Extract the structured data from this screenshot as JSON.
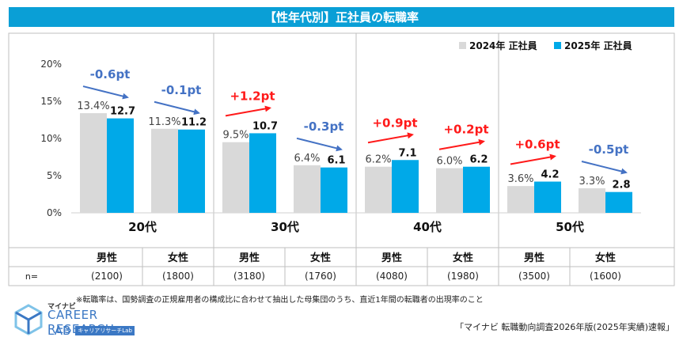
{
  "title": "【性年代別】正社員の転職率",
  "legend": [
    {
      "label": "2024年 正社員",
      "color": "#d9d9d9"
    },
    {
      "label": "2025年 正社員",
      "color": "#00a9e8"
    }
  ],
  "chart_data": {
    "type": "bar",
    "title": "【性年代別】正社員の転職率",
    "ylim": [
      0,
      20
    ],
    "yticks": [
      "0%",
      "5%",
      "10%",
      "15%",
      "20%"
    ],
    "age_groups": [
      "20代",
      "30代",
      "40代",
      "50代"
    ],
    "n_label": "n=",
    "groups": [
      {
        "age": "20代",
        "sex": "男性",
        "n": "(2100)",
        "v2024": 13.4,
        "v2025": 12.7,
        "l2024": "13.4%",
        "l2025": "12.7",
        "change": "-0.6pt",
        "dir": "down"
      },
      {
        "age": "20代",
        "sex": "女性",
        "n": "(1800)",
        "v2024": 11.3,
        "v2025": 11.2,
        "l2024": "11.3%",
        "l2025": "11.2",
        "change": "-0.1pt",
        "dir": "down"
      },
      {
        "age": "30代",
        "sex": "男性",
        "n": "(3180)",
        "v2024": 9.5,
        "v2025": 10.7,
        "l2024": "9.5%",
        "l2025": "10.7",
        "change": "+1.2pt",
        "dir": "up"
      },
      {
        "age": "30代",
        "sex": "女性",
        "n": "(1760)",
        "v2024": 6.4,
        "v2025": 6.1,
        "l2024": "6.4%",
        "l2025": "6.1",
        "change": "-0.3pt",
        "dir": "down"
      },
      {
        "age": "40代",
        "sex": "男性",
        "n": "(4080)",
        "v2024": 6.2,
        "v2025": 7.1,
        "l2024": "6.2%",
        "l2025": "7.1",
        "change": "+0.9pt",
        "dir": "up"
      },
      {
        "age": "40代",
        "sex": "女性",
        "n": "(1980)",
        "v2024": 6.0,
        "v2025": 6.2,
        "l2024": "6.0%",
        "l2025": "6.2",
        "change": "+0.2pt",
        "dir": "up"
      },
      {
        "age": "50代",
        "sex": "男性",
        "n": "(3500)",
        "v2024": 3.6,
        "v2025": 4.2,
        "l2024": "3.6%",
        "l2025": "4.2",
        "change": "+0.6pt",
        "dir": "up"
      },
      {
        "age": "50代",
        "sex": "女性",
        "n": "(1600)",
        "v2024": 3.3,
        "v2025": 2.8,
        "l2024": "3.3%",
        "l2025": "2.8",
        "change": "-0.5pt",
        "dir": "down"
      }
    ]
  },
  "colors": {
    "up": "#ff1a1a",
    "down": "#4472c4",
    "bar2024": "#d9d9d9",
    "bar2025": "#00a9e8",
    "title_bg": "#0a9fd6"
  },
  "footnote": "※転職率は、国勢調査の正規雇用者の構成比に合わせて抽出した母集団のうち、直近1年間の転職者の出現率のこと",
  "source": "「マイナビ 転職動向調査2026年版(2025年実績)速報」",
  "logo": {
    "top": "マイナビ",
    "main": "CAREER RESEARCH",
    "lab": "LAB",
    "tag": "キャリアリサーチLab"
  }
}
